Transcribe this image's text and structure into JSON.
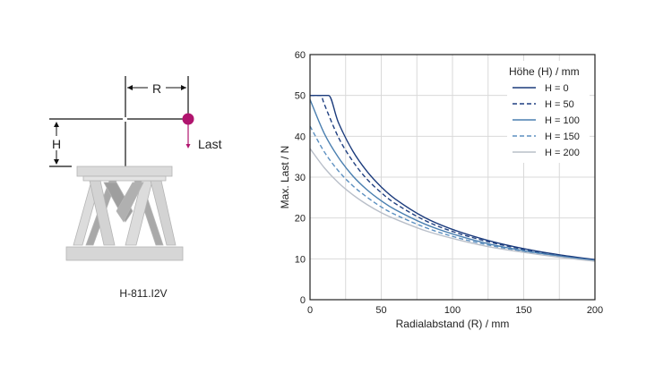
{
  "diagram": {
    "r_label": "R",
    "h_label": "H",
    "load_label": "Last",
    "model_label": "H-811.I2V",
    "load_color": "#b0146e"
  },
  "chart_data": {
    "type": "line",
    "xlabel": "Radialabstand (R) / mm",
    "ylabel": "Max. Last / N",
    "xlim": [
      0,
      200
    ],
    "ylim": [
      0,
      60
    ],
    "xticks": [
      0,
      50,
      100,
      150,
      200
    ],
    "yticks": [
      0,
      10,
      20,
      30,
      40,
      50,
      60
    ],
    "x_grid": [
      25,
      50,
      75,
      100,
      125,
      150,
      175
    ],
    "y_grid": [
      10,
      20,
      30,
      40,
      50
    ],
    "grid": true,
    "legend_title": "Höhe (H) / mm",
    "legend_position": "top-right",
    "series": [
      {
        "name": "H = 0",
        "color": "#1b3b7c",
        "dash": false,
        "x": [
          0,
          13,
          20,
          30,
          40,
          50,
          60,
          80,
          100,
          125,
          150,
          175,
          200
        ],
        "y": [
          50,
          50,
          43.3,
          36.4,
          31.4,
          27.6,
          24.6,
          20.2,
          17.2,
          14.5,
          12.5,
          11.0,
          9.8
        ]
      },
      {
        "name": "H = 50",
        "color": "#1f3f80",
        "dash": true,
        "x": [
          0,
          8,
          10,
          20,
          30,
          40,
          50,
          60,
          80,
          100,
          125,
          150,
          175,
          200
        ],
        "y": [
          50,
          50,
          47.9,
          39.7,
          33.9,
          29.5,
          26.2,
          23.5,
          19.5,
          16.7,
          14.2,
          12.3,
          10.8,
          9.7
        ]
      },
      {
        "name": "H = 100",
        "color": "#4a7fb0",
        "dash": false,
        "x": [
          0,
          10,
          20,
          30,
          40,
          50,
          60,
          80,
          100,
          125,
          150,
          175,
          200
        ],
        "y": [
          49.0,
          40.7,
          34.8,
          30.3,
          26.9,
          24.2,
          22.0,
          18.6,
          16.1,
          13.7,
          12.0,
          10.7,
          9.6
        ]
      },
      {
        "name": "H = 150",
        "color": "#5b8fc0",
        "dash": true,
        "x": [
          0,
          10,
          20,
          30,
          40,
          50,
          60,
          80,
          100,
          125,
          150,
          175,
          200
        ],
        "y": [
          42.5,
          36.2,
          31.5,
          27.9,
          25.1,
          22.7,
          20.8,
          17.8,
          15.5,
          13.4,
          11.8,
          10.5,
          9.5
        ]
      },
      {
        "name": "H = 200",
        "color": "#b9bfc9",
        "dash": false,
        "x": [
          0,
          10,
          20,
          30,
          40,
          50,
          60,
          80,
          100,
          125,
          150,
          175,
          200
        ],
        "y": [
          37.0,
          32.3,
          28.6,
          25.7,
          23.3,
          21.3,
          19.7,
          17.0,
          15.0,
          13.0,
          11.6,
          10.4,
          9.4
        ]
      }
    ]
  }
}
